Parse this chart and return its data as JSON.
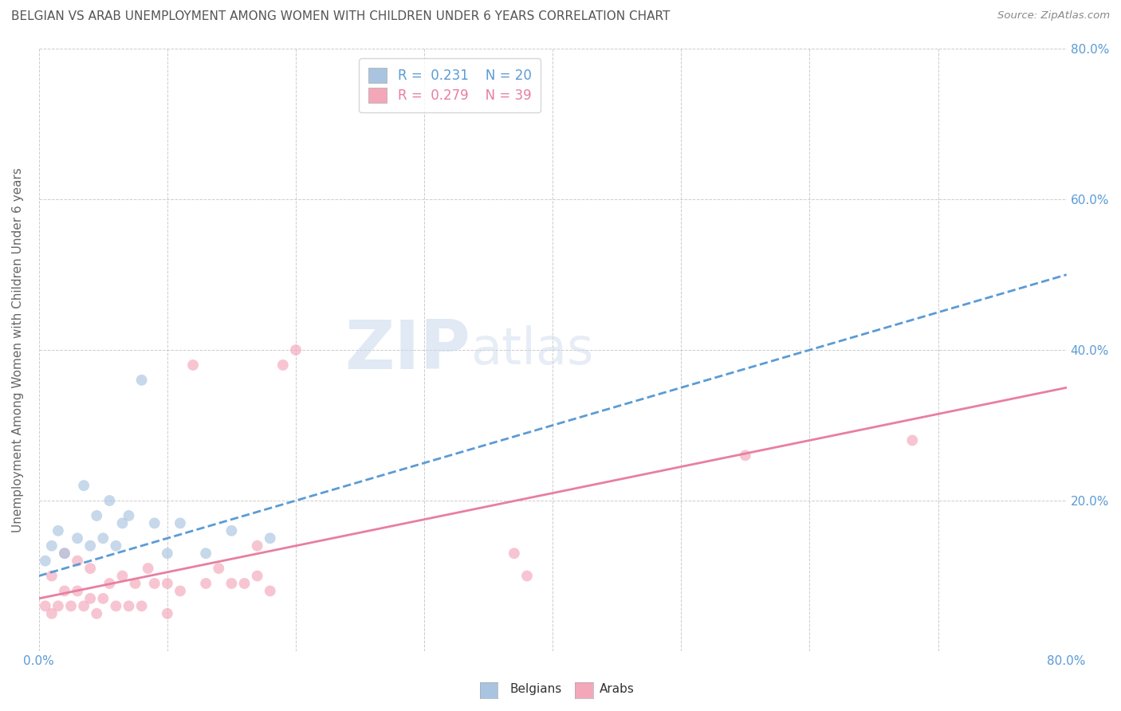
{
  "title": "BELGIAN VS ARAB UNEMPLOYMENT AMONG WOMEN WITH CHILDREN UNDER 6 YEARS CORRELATION CHART",
  "source": "Source: ZipAtlas.com",
  "ylabel": "Unemployment Among Women with Children Under 6 years",
  "ylabel_right_ticks": [
    "80.0%",
    "60.0%",
    "40.0%",
    "20.0%"
  ],
  "ylabel_right_vals": [
    0.8,
    0.6,
    0.4,
    0.2
  ],
  "background_color": "#ffffff",
  "plot_bg_color": "#ffffff",
  "belgians": {
    "label": "Belgians",
    "R": 0.231,
    "N": 20,
    "color": "#a8c4e0",
    "line_color": "#5b9bd5",
    "line_style": "--",
    "x": [
      0.005,
      0.01,
      0.015,
      0.02,
      0.03,
      0.035,
      0.04,
      0.045,
      0.05,
      0.055,
      0.06,
      0.065,
      0.07,
      0.08,
      0.09,
      0.1,
      0.11,
      0.13,
      0.15,
      0.18
    ],
    "y": [
      0.12,
      0.14,
      0.16,
      0.13,
      0.15,
      0.22,
      0.14,
      0.18,
      0.15,
      0.2,
      0.14,
      0.17,
      0.18,
      0.36,
      0.17,
      0.13,
      0.17,
      0.13,
      0.16,
      0.15
    ]
  },
  "arabs": {
    "label": "Arabs",
    "R": 0.279,
    "N": 39,
    "color": "#f4a7b9",
    "line_color": "#e87fa0",
    "line_style": "-",
    "x": [
      0.005,
      0.01,
      0.01,
      0.015,
      0.02,
      0.02,
      0.025,
      0.03,
      0.03,
      0.035,
      0.04,
      0.04,
      0.045,
      0.05,
      0.055,
      0.06,
      0.065,
      0.07,
      0.075,
      0.08,
      0.085,
      0.09,
      0.1,
      0.1,
      0.11,
      0.12,
      0.13,
      0.14,
      0.15,
      0.16,
      0.17,
      0.17,
      0.18,
      0.19,
      0.2,
      0.37,
      0.38,
      0.55,
      0.68
    ],
    "y": [
      0.06,
      0.05,
      0.1,
      0.06,
      0.08,
      0.13,
      0.06,
      0.08,
      0.12,
      0.06,
      0.07,
      0.11,
      0.05,
      0.07,
      0.09,
      0.06,
      0.1,
      0.06,
      0.09,
      0.06,
      0.11,
      0.09,
      0.05,
      0.09,
      0.08,
      0.38,
      0.09,
      0.11,
      0.09,
      0.09,
      0.1,
      0.14,
      0.08,
      0.38,
      0.4,
      0.13,
      0.1,
      0.26,
      0.28
    ]
  },
  "xlim": [
    0.0,
    0.8
  ],
  "ylim": [
    0.0,
    0.8
  ],
  "marker_size": 100,
  "grid_color": "#cccccc",
  "title_color": "#555555",
  "axis_label_color": "#666666",
  "tick_color": "#5b9bd5"
}
